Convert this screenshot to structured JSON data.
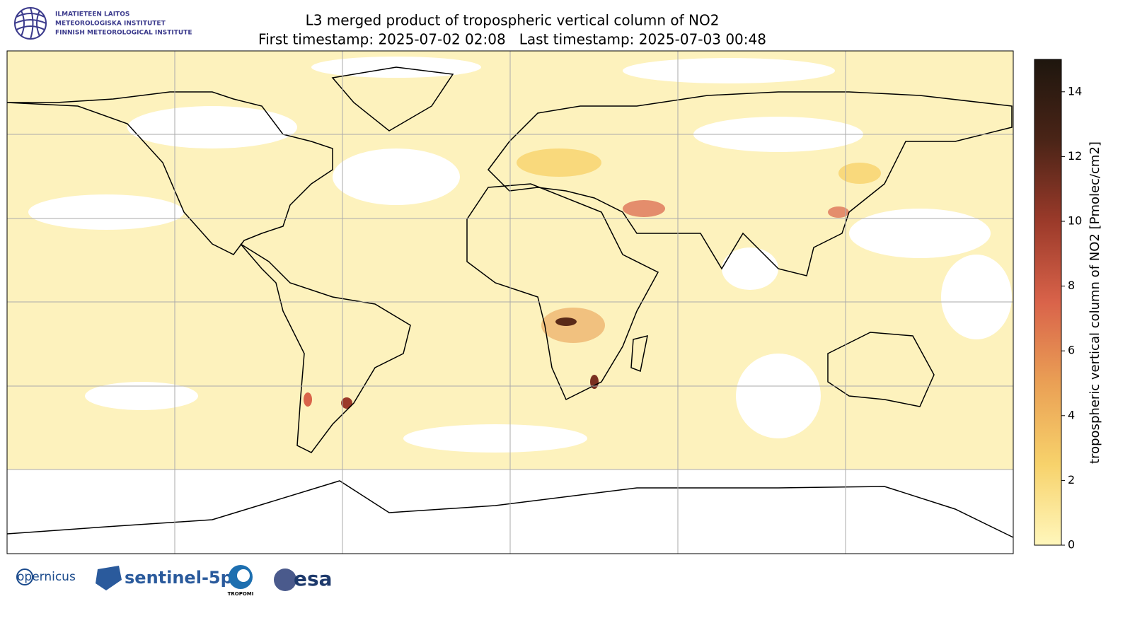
{
  "header": {
    "institute": [
      "ILMATIETEEN LAITOS",
      "METEOROLOGISKA INSTITUTET",
      "FINNISH METEOROLOGICAL INSTITUTE"
    ],
    "title": "L3 merged product of tropospheric vertical column of NO2",
    "subtitle": "First timestamp: 2025-07-02 02:08   Last timestamp: 2025-07-03 00:48"
  },
  "colorbar": {
    "label": "tropospheric vertical column of NO2 [Pmolec/cm2]",
    "lim": [
      0,
      15
    ],
    "ticks": [
      0,
      2,
      4,
      6,
      8,
      10,
      12,
      14
    ],
    "colors": [
      "#fff7bc",
      "#f7d26b",
      "#eaa055",
      "#d9634a",
      "#9b3a2a",
      "#4a2417",
      "#1e160e"
    ]
  },
  "footer": {
    "logos": [
      "opernicus",
      "sentinel-5p",
      "TROPOMI",
      "esa"
    ]
  }
}
